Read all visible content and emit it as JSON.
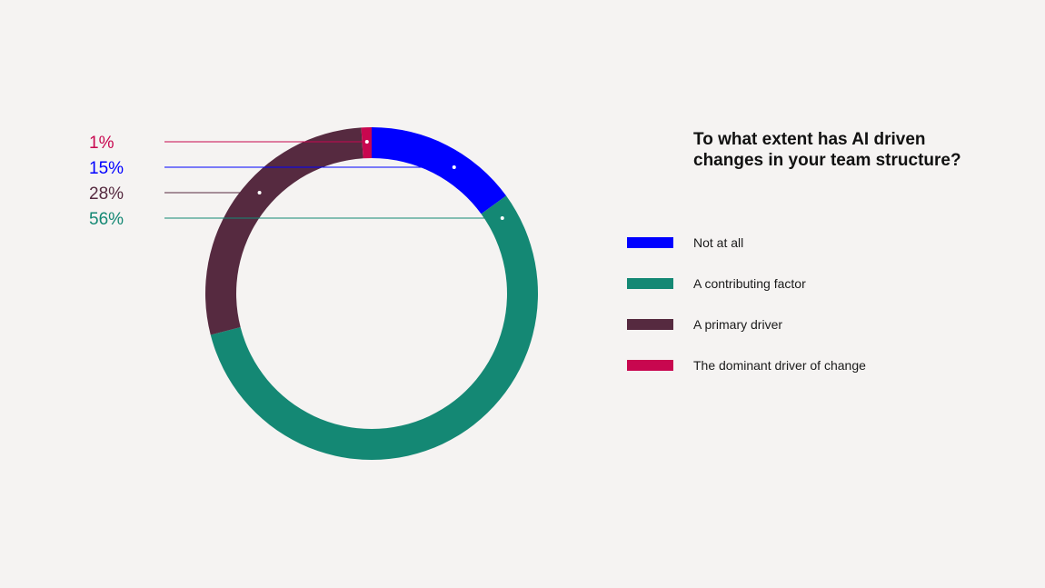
{
  "chart_data": {
    "type": "pie",
    "donut": true,
    "title": "To what extent has AI driven changes in your team structure?",
    "slices": [
      {
        "label": "Not at all",
        "value": 15,
        "display": "15%",
        "color": "#0000ff"
      },
      {
        "label": "A contributing factor",
        "value": 56,
        "display": "56%",
        "color": "#148874"
      },
      {
        "label": "A primary driver",
        "value": 28,
        "display": "28%",
        "color": "#562a40"
      },
      {
        "label": "The dominant driver of change",
        "value": 1,
        "display": "1%",
        "color": "#c8074f"
      }
    ],
    "callout_order": [
      "The dominant driver of change",
      "Not at all",
      "A primary driver",
      "A contributing factor"
    ],
    "legend_position": "right"
  }
}
